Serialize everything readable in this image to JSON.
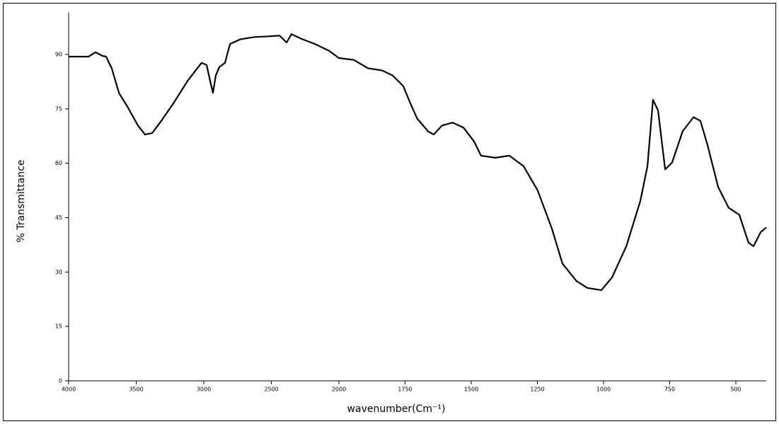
{
  "chart_data": {
    "type": "line",
    "x_label": "wavenumber(Cm⁻¹)",
    "y_label": "% Transmittance",
    "xlim": [
      4000,
      385
    ],
    "ylim": [
      0,
      101.5
    ],
    "xticks": [
      4000,
      3500,
      3000,
      2500,
      2000,
      1750,
      1500,
      1250,
      1000,
      750,
      500
    ],
    "yticks": [
      0,
      15,
      30,
      45,
      60,
      75,
      90
    ],
    "grid": false,
    "series": [
      {
        "color": "#000000",
        "x": [
          4000,
          3853,
          3801,
          3749,
          3723,
          3681,
          3628,
          3565,
          3487,
          3435,
          3382,
          3314,
          3225,
          3120,
          3016,
          2979,
          2953,
          2932,
          2911,
          2885,
          2843,
          2806,
          2728,
          2623,
          2518,
          2440,
          2387,
          2351,
          2283,
          2178,
          2073,
          2000,
          1944,
          1890,
          1837,
          1797,
          1757,
          1730,
          1704,
          1663,
          1642,
          1610,
          1570,
          1529,
          1489,
          1463,
          1409,
          1356,
          1302,
          1249,
          1195,
          1155,
          1102,
          1061,
          1008,
          968,
          914,
          861,
          834,
          813,
          794,
          767,
          741,
          701,
          660,
          634,
          607,
          567,
          527,
          487,
          452,
          433,
          406,
          385
        ],
        "values": [
          89.4,
          89.4,
          90.6,
          89.6,
          89.4,
          86.2,
          79.4,
          75.6,
          70.4,
          67.9,
          68.3,
          71.7,
          76.5,
          82.7,
          87.7,
          87.1,
          82.7,
          79.4,
          84.2,
          86.5,
          87.7,
          92.9,
          94.2,
          94.8,
          95,
          95.2,
          93.3,
          95.6,
          94.4,
          92.9,
          91,
          89,
          88.5,
          86.2,
          85.6,
          84.2,
          81.3,
          76.5,
          72.3,
          68.8,
          67.9,
          70.4,
          71.2,
          69.8,
          66,
          62.1,
          61.5,
          62.1,
          59.2,
          52.5,
          41.9,
          32.3,
          27.5,
          25.6,
          25,
          28.5,
          37.1,
          49.6,
          59.2,
          77.5,
          74.6,
          58.3,
          60.2,
          68.8,
          72.7,
          71.7,
          65,
          53.5,
          47.7,
          45.8,
          38.1,
          37.1,
          41,
          42.3
        ]
      }
    ]
  }
}
